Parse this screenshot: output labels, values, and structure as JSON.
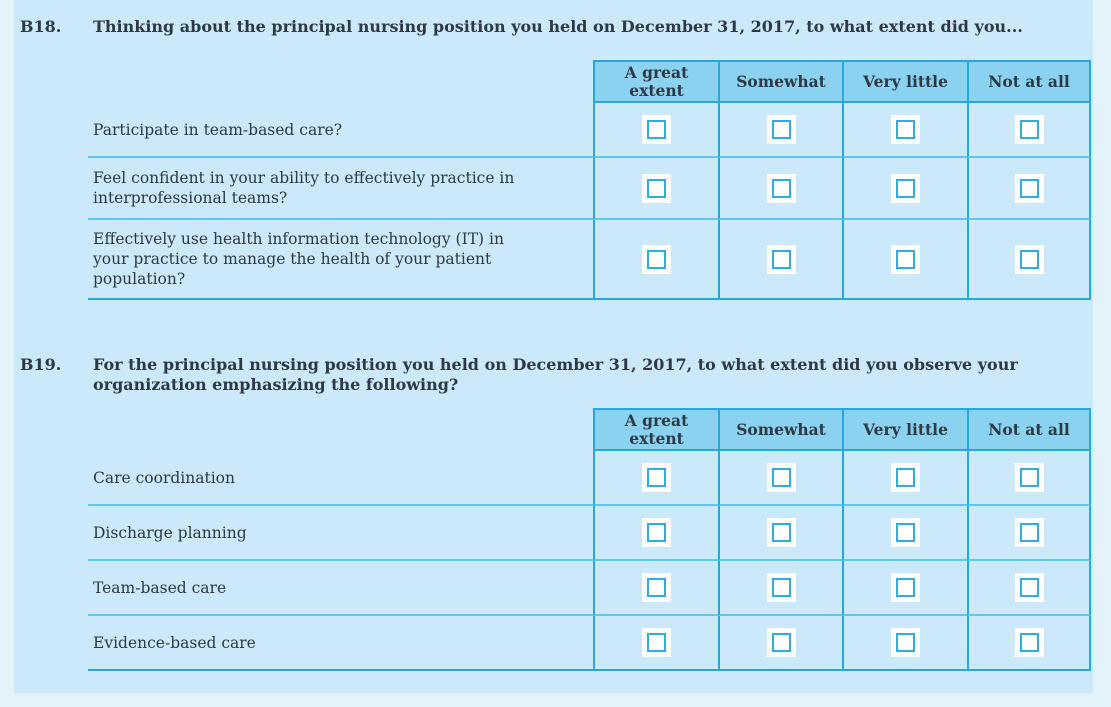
{
  "palette": {
    "outer_bg": "#e4f2fc",
    "panel_bg": "#cbe9f9",
    "header_bg": "#8ad2f0",
    "table_border": "#23a9dc",
    "row_line": "#5ec7ed",
    "checkbox_border": "#30adde",
    "text": "#2e3944"
  },
  "survey": {
    "questions": [
      {
        "number": "B18.",
        "text": "Thinking about the principal nursing position you held on December 31, 2017, to what extent did you...",
        "columns": [
          "A great extent",
          "Somewhat",
          "Very little",
          "Not at all"
        ],
        "rows": [
          {
            "label": "Participate in team-based care?"
          },
          {
            "label": "Feel confident in your ability to effectively practice in interprofessional teams?"
          },
          {
            "label": "Effectively use health information technology (IT) in your practice to manage the health of your patient population?"
          }
        ]
      },
      {
        "number": "B19.",
        "text": "For the principal nursing position you held on December 31, 2017, to what extent did you observe your organization emphasizing the following?",
        "columns": [
          "A great extent",
          "Somewhat",
          "Very little",
          "Not at all"
        ],
        "rows": [
          {
            "label": "Care coordination"
          },
          {
            "label": "Discharge planning"
          },
          {
            "label": "Team-based care"
          },
          {
            "label": "Evidence-based care"
          }
        ]
      }
    ],
    "checkbox_state": "unchecked"
  }
}
